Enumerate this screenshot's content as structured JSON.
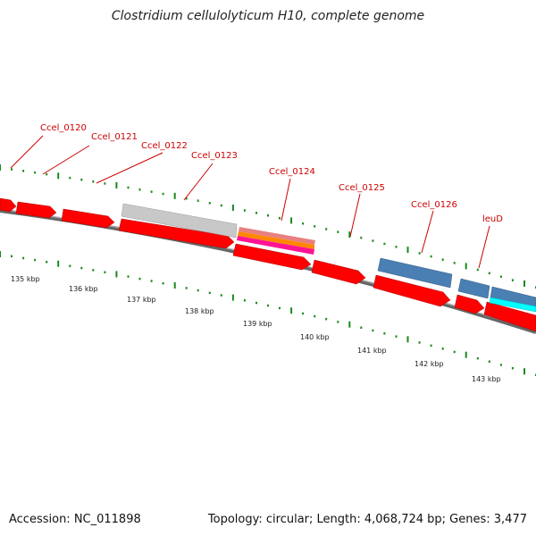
{
  "title": "Clostridium cellulolyticum H10, complete genome",
  "footer": {
    "accession": "Accession: NC_011898",
    "summary": "Topology: circular; Length: 4,068,724 bp; Genes: 3,477"
  },
  "colors": {
    "cds_red": "#ff0000",
    "cds_grey": "#c8c8c8",
    "cds_blue": "#4a7fb3",
    "cds_cyan": "#00ffff",
    "backbone": "#888888",
    "tick_green": "#1a8a1a",
    "label_red": "#cc0000",
    "orange": "#ff8800",
    "magenta": "#ff1493",
    "salmon": "#e88080"
  },
  "gene_labels": [
    {
      "text": "Ccel_0120"
    },
    {
      "text": "Ccel_0121"
    },
    {
      "text": "Ccel_0122"
    },
    {
      "text": "Ccel_0123"
    },
    {
      "text": "Ccel_0124"
    },
    {
      "text": "Ccel_0125"
    },
    {
      "text": "Ccel_0126"
    },
    {
      "text": "leuD"
    }
  ],
  "kbp_labels": [
    "135 kbp",
    "136 kbp",
    "137 kbp",
    "138 kbp",
    "139 kbp",
    "140 kbp",
    "141 kbp",
    "142 kbp",
    "143 kbp"
  ]
}
